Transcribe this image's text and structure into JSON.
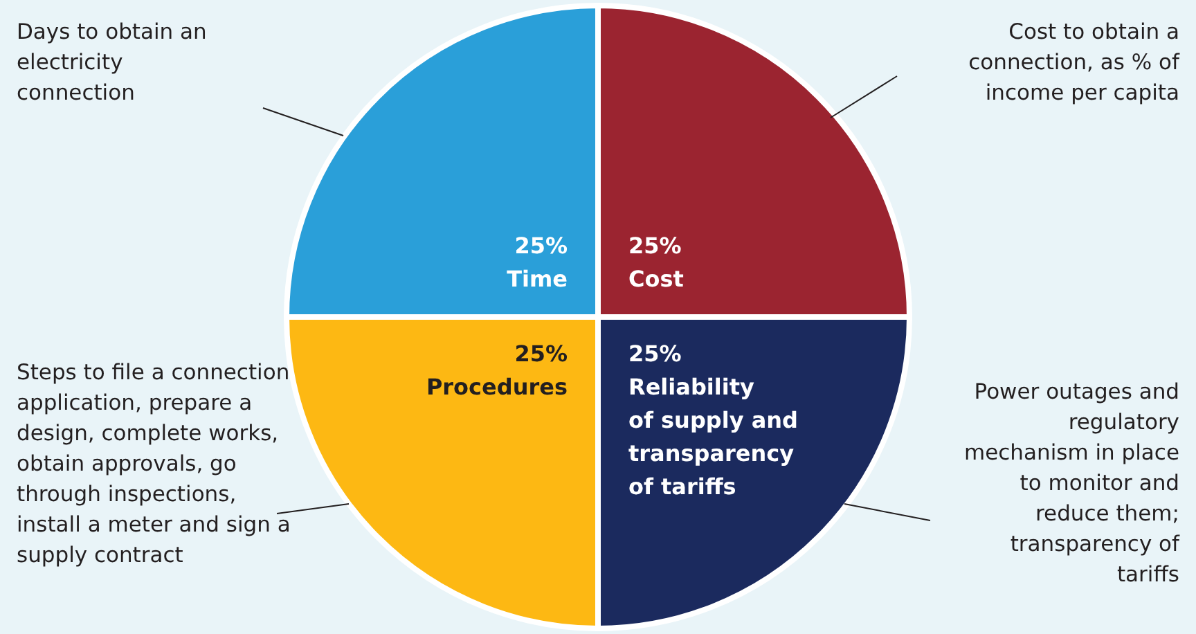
{
  "chart_data": {
    "type": "pie",
    "categories": [
      "Cost",
      "Reliability of supply and transparency of tariffs",
      "Procedures",
      "Time"
    ],
    "values": [
      25,
      25,
      25,
      25
    ],
    "colors": [
      "#9b2430",
      "#1b2a5e",
      "#fdb813",
      "#2a9fd9"
    ],
    "value_labels": [
      "25%",
      "25%",
      "25%",
      "25%"
    ],
    "annotations": [
      "Cost to obtain a connection, as % of income per capita",
      "Power outages and regulatory mechanism in place to monitor and reduce them; transparency of tariffs",
      "Steps to file a connection application, prepare a design, complete works, obtain approvals, go through inspections, install a meter and sign a supply contract",
      "Days to obtain an electricity connection"
    ]
  }
}
